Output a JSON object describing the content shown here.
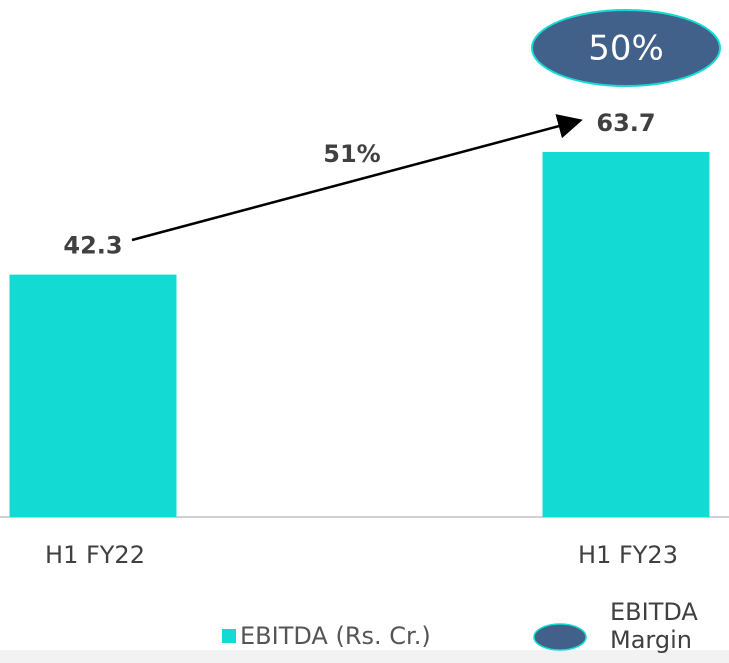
{
  "chart_data": {
    "type": "bar",
    "categories": [
      "H1 FY22",
      "H1 FY23"
    ],
    "values": [
      42.3,
      63.7
    ],
    "color": "#13dbd3",
    "series_name": "EBITDA (Rs. Cr.)",
    "growth_label": "51%",
    "margin": {
      "name": "EBITDA Margin",
      "value": 50,
      "label": "50%",
      "color": "#41608a"
    }
  }
}
